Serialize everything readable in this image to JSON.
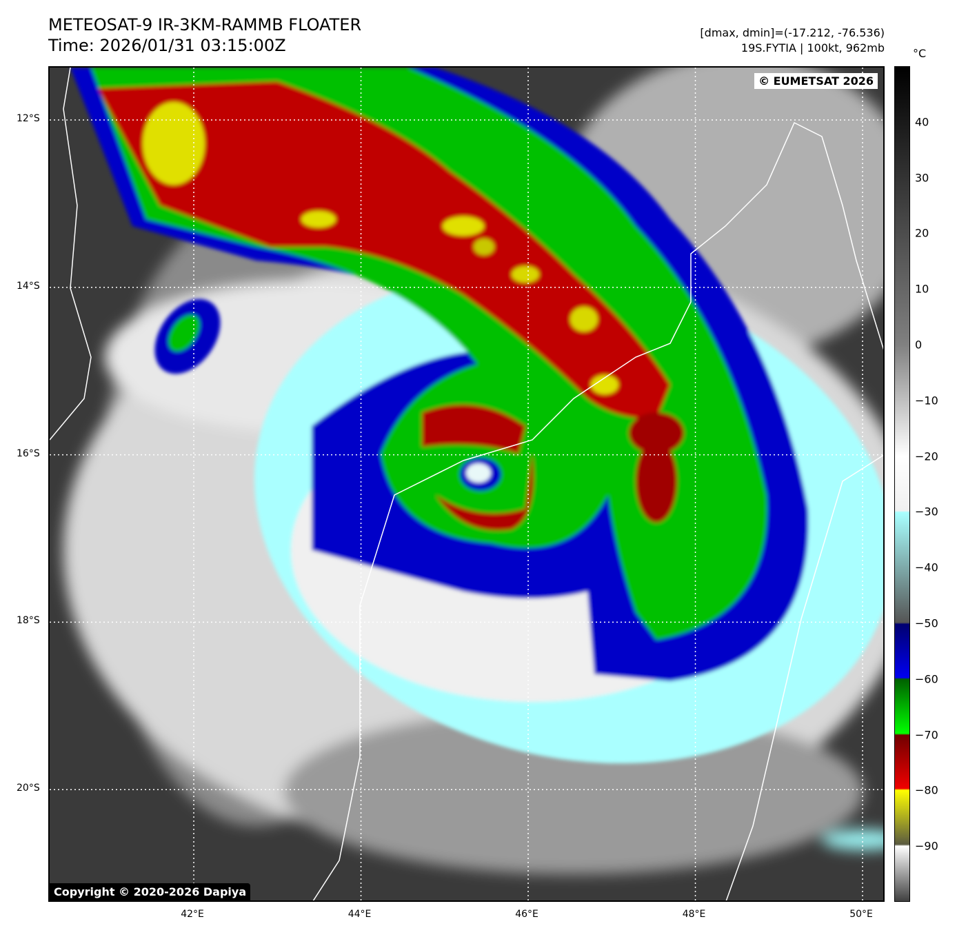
{
  "header": {
    "title": "METEOSAT-9 IR-3KM-RAMMB FLOATER",
    "time": "Time: 2026/01/31 03:15:00Z",
    "range": "[dmax, dmin]=(-17.212, -76.536)",
    "storm": "19S.FYTIA | 100kt, 962mb"
  },
  "map": {
    "credit_top": "© EUMETSAT 2026",
    "credit_bottom": "Copyright © 2020-2026 Dapiya",
    "lat_labels": [
      {
        "v": 12,
        "t": "12°S"
      },
      {
        "v": 14,
        "t": "14°S"
      },
      {
        "v": 16,
        "t": "16°S"
      },
      {
        "v": 18,
        "t": "18°S"
      },
      {
        "v": 20,
        "t": "20°S"
      }
    ],
    "lon_labels": [
      {
        "v": 42,
        "t": "42°E"
      },
      {
        "v": 44,
        "t": "44°E"
      },
      {
        "v": 46,
        "t": "46°E"
      },
      {
        "v": 48,
        "t": "48°E"
      },
      {
        "v": 50,
        "t": "50°E"
      }
    ]
  },
  "colorbar": {
    "unit": "°C",
    "min": -100,
    "max": 50,
    "ticks": [
      "40",
      "30",
      "20",
      "10",
      "0",
      "−10",
      "−20",
      "−30",
      "−40",
      "−50",
      "−60",
      "−70",
      "−80",
      "−90"
    ],
    "tick_values": [
      40,
      30,
      20,
      10,
      0,
      -10,
      -20,
      -30,
      -40,
      -50,
      -60,
      -70,
      -80,
      -90
    ]
  }
}
